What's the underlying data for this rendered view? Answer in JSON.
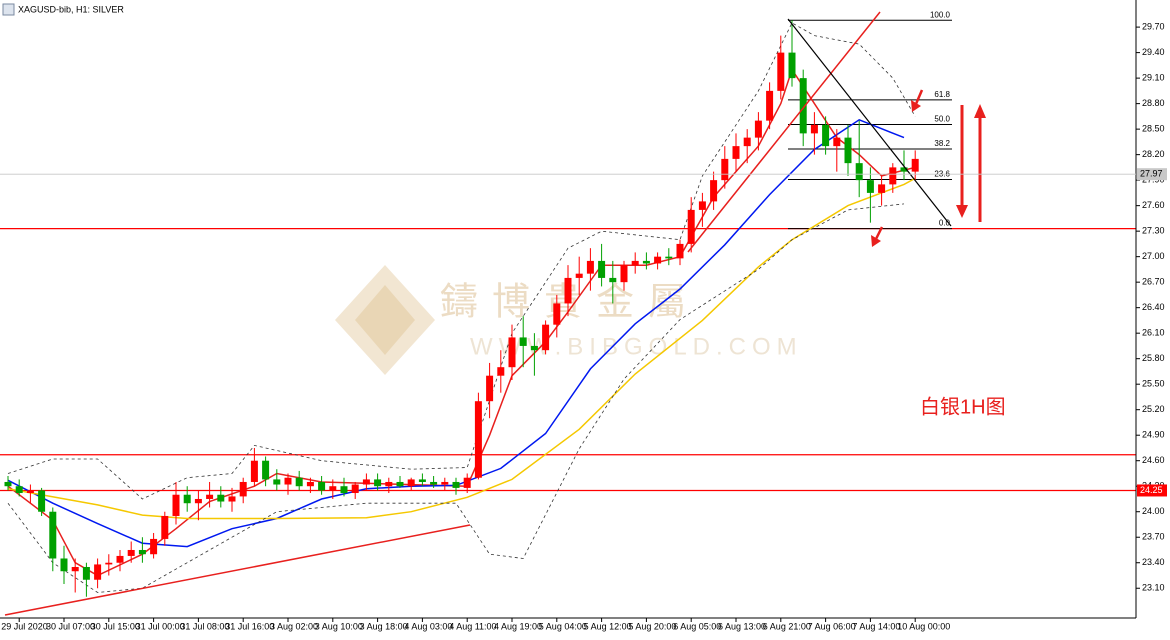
{
  "watermark": {
    "title": "鑄博貴金屬",
    "url": "WWW.BIBGOLD.COM"
  },
  "chart_data": {
    "type": "candlestick",
    "title": "XAGUSD-bib, H1: SILVER",
    "annotation": "白银1H图",
    "up_color": "#ff0000",
    "down_color": "#00a000",
    "ylim": [
      22.75,
      29.96
    ],
    "yticks": [
      {
        "value": 23.1,
        "label": "23.10"
      },
      {
        "value": 23.4,
        "label": "23.40"
      },
      {
        "value": 23.7,
        "label": "23.70"
      },
      {
        "value": 24.0,
        "label": "24.00"
      },
      {
        "value": 24.3,
        "label": "24.30"
      },
      {
        "value": 24.6,
        "label": "24.60"
      },
      {
        "value": 24.9,
        "label": "24.90"
      },
      {
        "value": 25.2,
        "label": "25.20"
      },
      {
        "value": 25.5,
        "label": "25.50"
      },
      {
        "value": 25.8,
        "label": "25.80"
      },
      {
        "value": 26.1,
        "label": "26.10"
      },
      {
        "value": 26.4,
        "label": "26.40"
      },
      {
        "value": 26.7,
        "label": "26.70"
      },
      {
        "value": 27.0,
        "label": "27.00"
      },
      {
        "value": 27.3,
        "label": "27.30"
      },
      {
        "value": 27.6,
        "label": "27.60"
      },
      {
        "value": 27.9,
        "label": "27.90"
      },
      {
        "value": 28.2,
        "label": "28.20"
      },
      {
        "value": 28.5,
        "label": "28.50"
      },
      {
        "value": 28.8,
        "label": "28.80"
      },
      {
        "value": 29.1,
        "label": "29.10"
      },
      {
        "value": 29.4,
        "label": "29.40"
      },
      {
        "value": 29.7,
        "label": "29.70"
      }
    ],
    "categories": [
      null,
      "29 Jul 2020",
      null,
      null,
      null,
      "30 Jul 07:00",
      null,
      null,
      null,
      "30 Jul 15:00",
      null,
      null,
      null,
      "31 Jul 00:00",
      null,
      null,
      null,
      "31 Jul 08:00",
      null,
      null,
      null,
      "31 Jul 16:00",
      null,
      null,
      null,
      "3 Aug 02:00",
      null,
      null,
      null,
      "3 Aug 10:00",
      null,
      null,
      null,
      "3 Aug 18:00",
      null,
      null,
      null,
      "4 Aug 03:00",
      null,
      null,
      null,
      "4 Aug 11:00",
      null,
      null,
      null,
      "4 Aug 19:00",
      null,
      null,
      null,
      "5 Aug 04:00",
      null,
      null,
      null,
      "5 Aug 12:00",
      null,
      null,
      null,
      "5 Aug 20:00",
      null,
      null,
      null,
      "6 Aug 05:00",
      null,
      null,
      null,
      "6 Aug 13:00",
      null,
      null,
      null,
      "6 Aug 21:00",
      null,
      null,
      null,
      "7 Aug 06:00",
      null,
      null,
      null,
      "7 Aug 14:00",
      null,
      null,
      null,
      "10 Aug 00:00"
    ],
    "open": [
      24.35,
      24.3,
      24.22,
      24.25,
      24.0,
      23.45,
      23.3,
      23.35,
      23.2,
      23.38,
      23.4,
      23.48,
      23.55,
      23.5,
      23.68,
      23.95,
      24.2,
      24.1,
      24.15,
      24.2,
      24.12,
      24.18,
      24.35,
      24.6,
      24.38,
      24.32,
      24.4,
      24.3,
      24.35,
      24.25,
      24.3,
      24.22,
      24.32,
      24.38,
      24.3,
      24.35,
      24.3,
      24.38,
      24.35,
      24.32,
      24.35,
      24.28,
      24.4,
      25.3,
      25.6,
      25.7,
      26.05,
      25.95,
      25.9,
      26.2,
      26.45,
      26.75,
      26.8,
      26.95,
      26.75,
      26.7,
      26.9,
      26.95,
      26.92,
      27.0,
      26.98,
      27.15,
      27.55,
      27.65,
      27.9,
      28.15,
      28.3,
      28.4,
      28.6,
      28.95,
      29.4,
      29.1,
      28.45,
      28.55,
      28.3,
      28.4,
      28.1,
      27.9,
      27.75,
      27.85,
      28.05,
      28.0
    ],
    "high": [
      24.42,
      24.38,
      24.32,
      24.28,
      24.05,
      23.6,
      23.45,
      23.4,
      23.45,
      23.5,
      23.55,
      23.65,
      23.7,
      23.75,
      24.0,
      24.35,
      24.3,
      24.25,
      24.35,
      24.3,
      24.28,
      24.4,
      24.75,
      24.65,
      24.5,
      24.45,
      24.48,
      24.4,
      24.42,
      24.38,
      24.4,
      24.35,
      24.45,
      24.45,
      24.4,
      24.42,
      24.4,
      24.45,
      24.42,
      24.4,
      24.4,
      24.45,
      25.4,
      25.75,
      25.9,
      26.2,
      26.3,
      26.1,
      26.25,
      26.55,
      26.9,
      27.0,
      27.1,
      27.15,
      26.95,
      26.95,
      27.05,
      27.05,
      27.05,
      27.1,
      27.2,
      27.7,
      27.75,
      28.0,
      28.3,
      28.45,
      28.5,
      28.7,
      29.05,
      29.6,
      29.78,
      29.2,
      28.7,
      28.65,
      28.5,
      28.55,
      28.6,
      28.05,
      27.95,
      28.1,
      28.25,
      28.25
    ],
    "low": [
      24.25,
      24.18,
      24.1,
      23.95,
      23.3,
      23.15,
      23.05,
      23.0,
      23.1,
      23.25,
      23.3,
      23.4,
      23.4,
      23.45,
      23.6,
      23.85,
      24.0,
      23.9,
      24.05,
      24.05,
      24.0,
      24.1,
      24.3,
      24.3,
      24.25,
      24.2,
      24.25,
      24.22,
      24.2,
      24.15,
      24.18,
      24.15,
      24.25,
      24.25,
      24.22,
      24.28,
      24.25,
      24.3,
      24.28,
      24.25,
      24.2,
      24.22,
      24.38,
      25.1,
      25.4,
      25.55,
      25.7,
      25.6,
      25.85,
      26.05,
      26.3,
      26.55,
      26.6,
      26.65,
      26.45,
      26.6,
      26.8,
      26.85,
      26.85,
      26.9,
      26.9,
      27.05,
      27.35,
      27.55,
      27.8,
      28.0,
      28.1,
      28.25,
      28.5,
      28.85,
      29.0,
      28.3,
      28.2,
      28.2,
      28.0,
      27.95,
      27.7,
      27.4,
      27.6,
      27.75,
      27.9,
      27.9
    ],
    "close": [
      24.3,
      24.22,
      24.25,
      24.0,
      23.45,
      23.3,
      23.35,
      23.2,
      23.38,
      23.4,
      23.48,
      23.55,
      23.5,
      23.68,
      23.95,
      24.2,
      24.1,
      24.15,
      24.2,
      24.12,
      24.18,
      24.35,
      24.6,
      24.38,
      24.32,
      24.4,
      24.3,
      24.35,
      24.25,
      24.3,
      24.22,
      24.32,
      24.38,
      24.3,
      24.35,
      24.3,
      24.38,
      24.35,
      24.32,
      24.35,
      24.28,
      24.4,
      25.3,
      25.6,
      25.7,
      26.05,
      25.95,
      25.9,
      26.2,
      26.45,
      26.75,
      26.8,
      26.95,
      26.75,
      26.7,
      26.9,
      26.95,
      26.92,
      27.0,
      26.98,
      27.15,
      27.55,
      27.65,
      27.9,
      28.15,
      28.3,
      28.4,
      28.6,
      28.95,
      29.4,
      29.1,
      28.45,
      28.55,
      28.3,
      28.4,
      28.1,
      27.9,
      27.75,
      27.85,
      28.05,
      28.0,
      28.15
    ],
    "lines": [
      {
        "color": "#e8201e",
        "width": 1.5,
        "dashed": false,
        "x": [
          0,
          4,
          6,
          8,
          12,
          15,
          18,
          22,
          24,
          28,
          41,
          43,
          45,
          48,
          50,
          53,
          57,
          60,
          63,
          67,
          69,
          70,
          72,
          74,
          76,
          78,
          81
        ],
        "values": [
          24.3,
          23.9,
          23.4,
          23.25,
          23.5,
          23.8,
          24.12,
          24.3,
          24.45,
          24.35,
          24.3,
          24.9,
          25.6,
          26.0,
          26.35,
          26.9,
          26.9,
          27.0,
          27.7,
          28.3,
          28.8,
          29.2,
          28.8,
          28.4,
          28.2,
          27.95,
          28.05
        ]
      },
      {
        "color": "#0018f0",
        "width": 1.5,
        "dashed": false,
        "x": [
          0,
          4,
          8,
          12,
          16,
          20,
          24,
          28,
          32,
          36,
          40,
          44,
          48,
          52,
          56,
          60,
          64,
          68,
          72,
          76,
          80
        ],
        "values": [
          24.37,
          24.1,
          23.86,
          23.63,
          23.59,
          23.8,
          23.92,
          24.15,
          24.27,
          24.3,
          24.31,
          24.51,
          24.92,
          25.68,
          26.21,
          26.62,
          27.14,
          27.73,
          28.26,
          28.61,
          28.4
        ]
      },
      {
        "color": "#f5c800",
        "width": 1.5,
        "dashed": false,
        "x": [
          0,
          8,
          12,
          16,
          24,
          32,
          36,
          41,
          45,
          51,
          56,
          62,
          67,
          70,
          75,
          80,
          81
        ],
        "values": [
          24.27,
          24.08,
          23.96,
          23.92,
          23.92,
          23.93,
          24.0,
          24.17,
          24.38,
          24.97,
          25.62,
          26.25,
          26.88,
          27.2,
          27.6,
          27.85,
          27.92
        ]
      },
      {
        "color": "#333333",
        "width": 0.8,
        "dashed": true,
        "x": [
          0,
          4,
          8,
          12,
          16,
          20,
          22,
          28,
          36,
          41,
          45,
          50,
          53,
          60,
          62,
          67,
          70,
          72,
          76,
          79,
          81
        ],
        "values": [
          24.45,
          24.62,
          24.62,
          24.15,
          24.4,
          24.45,
          24.78,
          24.6,
          24.5,
          24.52,
          26.1,
          27.1,
          27.3,
          27.2,
          27.95,
          28.95,
          29.75,
          29.6,
          29.5,
          29.1,
          28.65
        ]
      },
      {
        "color": "#333333",
        "width": 0.8,
        "dashed": true,
        "x": [
          0,
          4,
          8,
          12,
          16,
          20,
          24,
          32,
          40,
          43,
          46,
          51,
          55,
          60,
          67,
          70,
          75,
          80
        ],
        "values": [
          24.1,
          23.4,
          23.05,
          23.1,
          23.4,
          23.7,
          24.0,
          24.1,
          24.1,
          23.5,
          23.45,
          24.74,
          25.56,
          26.26,
          26.85,
          27.2,
          27.55,
          27.62
        ]
      }
    ],
    "levels": [
      {
        "value": 27.33,
        "color": "#ff0000"
      },
      {
        "value": 24.67,
        "color": "#ff0000"
      },
      {
        "value": 24.25,
        "color": "#ff0000"
      }
    ],
    "axis_markers": [
      {
        "value": 27.97,
        "color": "#c8c8c8"
      },
      {
        "value": 24.25,
        "color": "#ff0000"
      }
    ],
    "fibonacci": {
      "high": 29.78,
      "low": 27.33,
      "levels": [
        {
          "value": 100,
          "label": "100.0"
        },
        61.8,
        {
          "value": 50,
          "label": "50.0"
        },
        38.2,
        23.6,
        {
          "value": 0,
          "label": "0.0"
        }
      ]
    }
  }
}
